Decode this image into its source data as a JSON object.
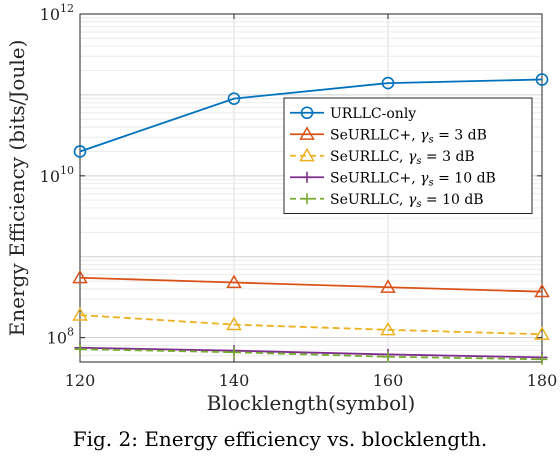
{
  "chart_data": {
    "type": "line",
    "xlabel": "Blocklength(symbol)",
    "ylabel": "Energy Efficiency (bits/Joule)",
    "yscale": "log",
    "xlim": [
      120,
      180
    ],
    "ylim": [
      50000000,
      1000000000000
    ],
    "x_ticks": [
      120,
      140,
      160,
      180
    ],
    "x_tick_labels": [
      "120",
      "140",
      "160",
      "180"
    ],
    "y_ticks": [
      100000000,
      10000000000,
      1000000000000
    ],
    "y_tick_labels": [
      {
        "base": "10",
        "exp": "8"
      },
      {
        "base": "10",
        "exp": "10"
      },
      {
        "base": "10",
        "exp": "12"
      }
    ],
    "grid": true,
    "legend_position": "upper-right",
    "series": [
      {
        "name": "URLLC-only",
        "marker": "circle",
        "dash": "solid",
        "color": "#0072BD",
        "x": [
          120,
          140,
          160,
          180
        ],
        "y": [
          20000000000,
          90000000000,
          140000000000,
          155000000000
        ]
      },
      {
        "name": "SeURLLC+, γs = 3 dB",
        "marker": "triangle",
        "dash": "solid",
        "color": "#D95319",
        "x": [
          120,
          140,
          160,
          180
        ],
        "y": [
          550000000,
          480000000,
          420000000,
          370000000
        ]
      },
      {
        "name": "SeURLLC, γs = 3 dB",
        "marker": "triangle",
        "dash": "dashed",
        "color": "#EDB120",
        "x": [
          120,
          140,
          160,
          180
        ],
        "y": [
          190000000,
          145000000,
          125000000,
          110000000
        ]
      },
      {
        "name": "SeURLLC+, γs = 10 dB",
        "marker": "plus",
        "dash": "solid",
        "color": "#7E2F8E",
        "x": [
          120,
          140,
          160,
          180
        ],
        "y": [
          75000000,
          69000000,
          62000000,
          57000000
        ]
      },
      {
        "name": "SeURLLC, γs = 10 dB",
        "marker": "plus",
        "dash": "dashed",
        "color": "#77AC30",
        "x": [
          120,
          140,
          160,
          180
        ],
        "y": [
          72000000,
          66000000,
          58000000,
          54000000
        ]
      }
    ]
  },
  "legend": [
    {
      "prefix": "URLLC-only",
      "sym": "",
      "sub": "",
      "suffix": ""
    },
    {
      "prefix": "SeURLLC+, ",
      "sym": "γ",
      "sub": "s",
      "suffix": " = 3 dB"
    },
    {
      "prefix": "SeURLLC, ",
      "sym": "γ",
      "sub": "s",
      "suffix": " = 3 dB"
    },
    {
      "prefix": "SeURLLC+, ",
      "sym": "γ",
      "sub": "s",
      "suffix": " = 10 dB"
    },
    {
      "prefix": "SeURLLC, ",
      "sym": "γ",
      "sub": "s",
      "suffix": " = 10 dB"
    }
  ],
  "caption": "Fig. 2: Energy efficiency vs. blocklength."
}
